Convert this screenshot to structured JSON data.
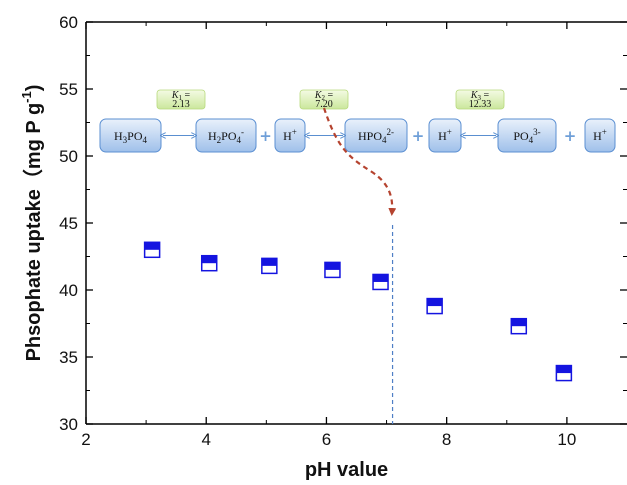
{
  "chart_data": {
    "type": "scatter",
    "title": "",
    "xlabel": "pH value",
    "ylabel": "Phsophate uptake（mg P g",
    "ylabel_sup": "-1",
    "ylabel_close": ")",
    "xlim": [
      2,
      11
    ],
    "ylim": [
      30,
      60
    ],
    "xticks": [
      2,
      4,
      6,
      8,
      10
    ],
    "yticks": [
      30,
      35,
      40,
      45,
      50,
      55,
      60
    ],
    "grid": false,
    "series": [
      {
        "x": [
          3.1,
          4.05,
          5.05,
          6.1,
          6.9,
          7.8,
          9.2,
          9.95
        ],
        "y": [
          43.0,
          42.0,
          41.8,
          41.5,
          40.6,
          38.8,
          37.3,
          33.8
        ]
      }
    ],
    "reference_line": {
      "x": 7.1,
      "style": "dashed"
    },
    "marker_color": "#1414e0",
    "species": [
      {
        "base": "H",
        "sub1": "3",
        "mid": "PO",
        "sub2": "4",
        "sup": ""
      },
      {
        "base": "H",
        "sub1": "2",
        "mid": "PO",
        "sub2": "4",
        "sup": "-"
      },
      {
        "base": "H",
        "sub1": "",
        "mid": "",
        "sub2": "",
        "sup": "+"
      },
      {
        "base": "HPO",
        "sub1": "4",
        "mid": "",
        "sub2": "",
        "sup": "2-"
      },
      {
        "base": "H",
        "sub1": "",
        "mid": "",
        "sub2": "",
        "sup": "+"
      },
      {
        "base": "PO",
        "sub1": "4",
        "mid": "",
        "sub2": "",
        "sup": "3-"
      },
      {
        "base": "H",
        "sub1": "",
        "mid": "",
        "sub2": "",
        "sup": "+"
      }
    ],
    "equilibria": [
      {
        "sym": "K",
        "sub": "1",
        "eq": " =",
        "value": "2.13"
      },
      {
        "sym": "K",
        "sub": "2",
        "eq": " =",
        "value": "7.20"
      },
      {
        "sym": "K",
        "sub": "3",
        "eq": " =",
        "value": "12.33"
      }
    ]
  }
}
